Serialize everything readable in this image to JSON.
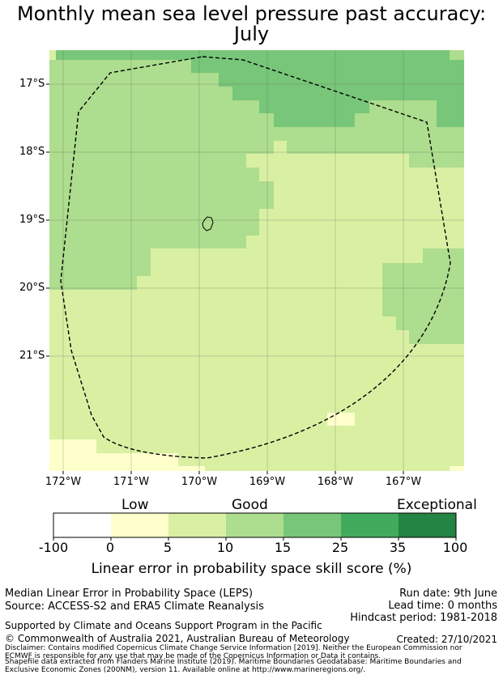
{
  "title_line1": "Monthly mean sea level pressure past accuracy:",
  "title_line2": "July",
  "map": {
    "lat_labels": [
      "17°S",
      "18°S",
      "19°S",
      "20°S",
      "21°S"
    ],
    "lon_labels": [
      "172°W",
      "171°W",
      "170°W",
      "169°W",
      "168°W",
      "167°W"
    ],
    "palette": {
      "low": "#ffffcc",
      "moderate": "#d9f0a3",
      "good": "#addd8e",
      "verygood": "#78c679",
      "boundary": "#000000"
    }
  },
  "colorbar": {
    "categories": [
      "Low",
      "Good",
      "Exceptional"
    ],
    "ticks": [
      "-100",
      "0",
      "5",
      "10",
      "15",
      "25",
      "35",
      "100"
    ],
    "colors": [
      "#ffffff",
      "#ffffcc",
      "#d9f0a3",
      "#addd8e",
      "#78c679",
      "#41ab5d",
      "#238443"
    ],
    "label": "Linear error in probability space skill score (%)"
  },
  "footer": {
    "line1": "Median Linear Error in Probability Space (LEPS)",
    "line2": "Source: ACCESS-S2 and ERA5 Climate Reanalysis",
    "run_date": "Run date: 9th June",
    "lead_time": "Lead time: 0 months",
    "hindcast": "Hindcast period: 1981-2018",
    "support": "Supported by Climate and Oceans Support Program in the Pacific",
    "copyright": "© Commonwealth of Australia 2021, Australian Bureau of Meteorology",
    "created": "Created: 27/10/2021",
    "disclaimer1": "Disclaimer: Contains modified Copernicus Climate Change Service Information [2019]. Neither the European Commission nor",
    "disclaimer2": "ECMWF is responsible for any use that may be made of the Copernicus Information or Data it contains.",
    "shapefile1": "Shapefile data extracted from Flanders Marine Institute (2019). Maritime Boundaries Geodatabase: Maritime Boundaries and",
    "shapefile2": "Exclusive Economic Zones (200NM), version 11. Available online at http://www.marineregions.org/."
  }
}
